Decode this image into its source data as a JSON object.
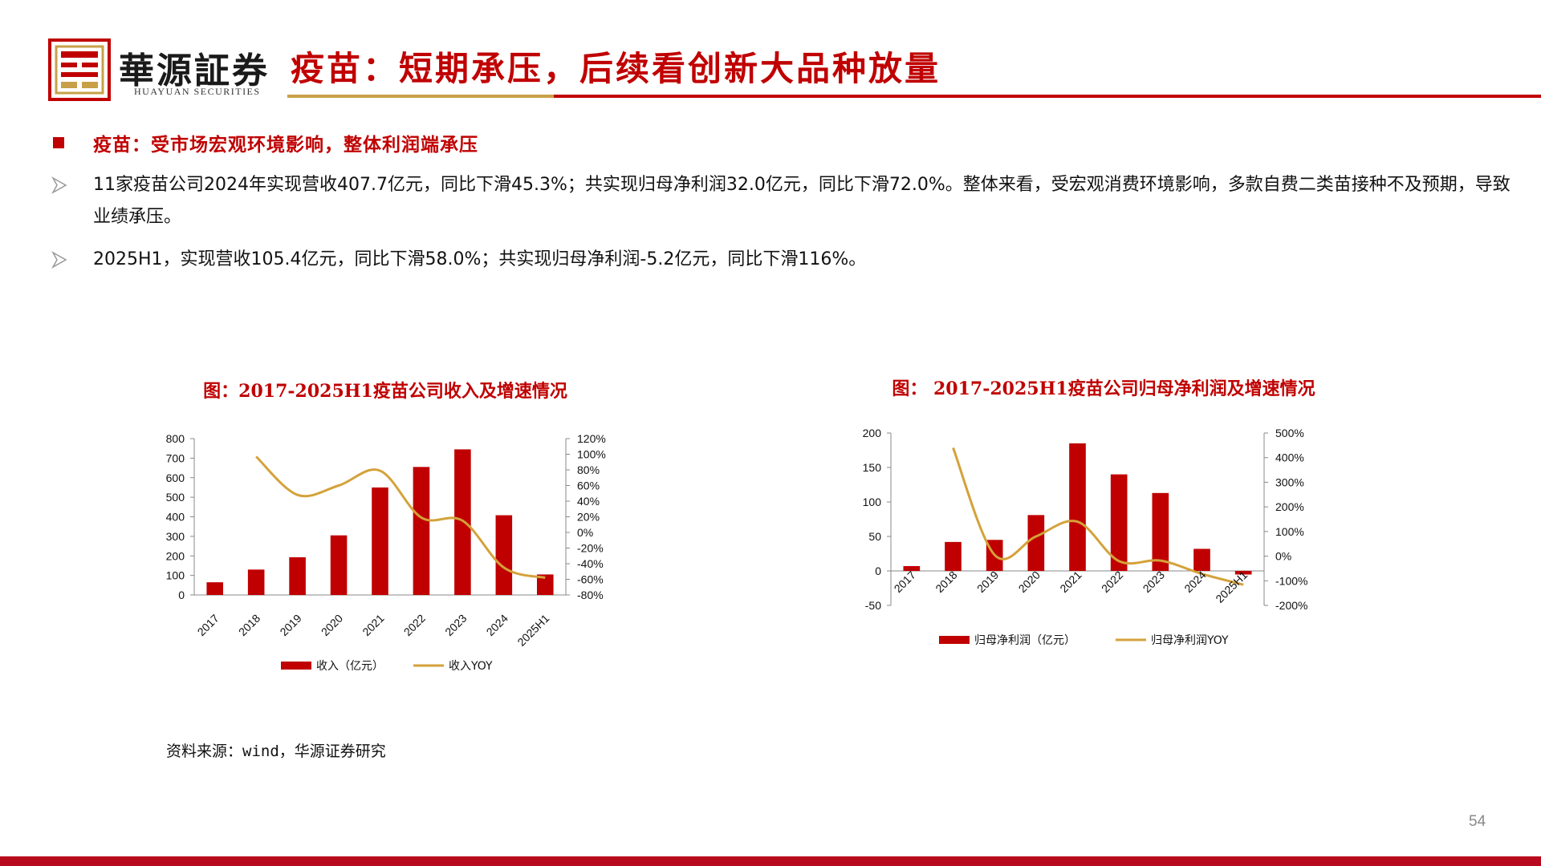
{
  "header": {
    "brand_cn": "華源証券",
    "brand_en": "HUAYUAN SECURITIES",
    "title": "疫苗：短期承压，后续看创新大品种放量",
    "accent_red": "#c00000",
    "accent_gold": "#c8a048"
  },
  "section": {
    "heading": "疫苗：受市场宏观环境影响，整体利润端承压",
    "bullets": [
      "11家疫苗公司2024年实现营收407.7亿元，同比下滑45.3%；共实现归母净利润32.0亿元，同比下滑72.0%。整体来看，受宏观消费环境影响，多款自费二类苗接种不及预期，导致业绩承压。",
      "2025H1，实现营收105.4亿元，同比下滑58.0%；共实现归母净利润-5.2亿元，同比下滑116%。"
    ]
  },
  "chart_data": [
    {
      "type": "bar",
      "title": "图：2017-2025H1疫苗公司收入及增速情况",
      "categories": [
        "2017",
        "2018",
        "2019",
        "2020",
        "2021",
        "2022",
        "2023",
        "2024",
        "2025H1"
      ],
      "series": [
        {
          "name": "收入（亿元）",
          "type": "bar",
          "axis": "left",
          "color": "#c00000",
          "values": [
            65,
            130,
            193,
            305,
            550,
            655,
            745,
            408,
            105
          ]
        },
        {
          "name": "收入YOY",
          "type": "line",
          "axis": "right",
          "color": "#d4a23a",
          "values": [
            null,
            97,
            48,
            60,
            79,
            19,
            15,
            -45,
            -58
          ]
        }
      ],
      "y_left": {
        "min": 0,
        "max": 800,
        "ticks": [
          "0",
          "100",
          "200",
          "300",
          "400",
          "500",
          "600",
          "700",
          "800"
        ]
      },
      "y_right": {
        "min": -80,
        "max": 120,
        "ticks": [
          "-80%",
          "-60%",
          "-40%",
          "-20%",
          "0%",
          "20%",
          "40%",
          "60%",
          "80%",
          "100%",
          "120%"
        ]
      },
      "legend": [
        "收入（亿元）",
        "收入YOY"
      ]
    },
    {
      "type": "bar",
      "title": "图： 2017-2025H1疫苗公司归母净利润及增速情况",
      "categories": [
        "2017",
        "2018",
        "2019",
        "2020",
        "2021",
        "2022",
        "2023",
        "2024",
        "2025H1"
      ],
      "series": [
        {
          "name": "归母净利润（亿元）",
          "type": "bar",
          "axis": "left",
          "color": "#c00000",
          "values": [
            7,
            42,
            45,
            81,
            185,
            140,
            113,
            32,
            -5.2
          ]
        },
        {
          "name": "归母净利润YOY",
          "type": "line",
          "axis": "right",
          "color": "#d4a23a",
          "values": [
            null,
            440,
            5,
            80,
            140,
            -20,
            -18,
            -72,
            -116
          ]
        }
      ],
      "y_left": {
        "min": -50,
        "max": 200,
        "ticks": [
          "-50",
          "0",
          "50",
          "100",
          "150",
          "200"
        ]
      },
      "y_right": {
        "min": -200,
        "max": 500,
        "ticks": [
          "-200%",
          "-100%",
          "0%",
          "100%",
          "200%",
          "300%",
          "400%",
          "500%"
        ]
      },
      "legend": [
        "归母净利润（亿元）",
        "归母净利润YOY"
      ]
    }
  ],
  "footer": {
    "source": "资料来源：wind，华源证券研究",
    "page_number": "54"
  }
}
